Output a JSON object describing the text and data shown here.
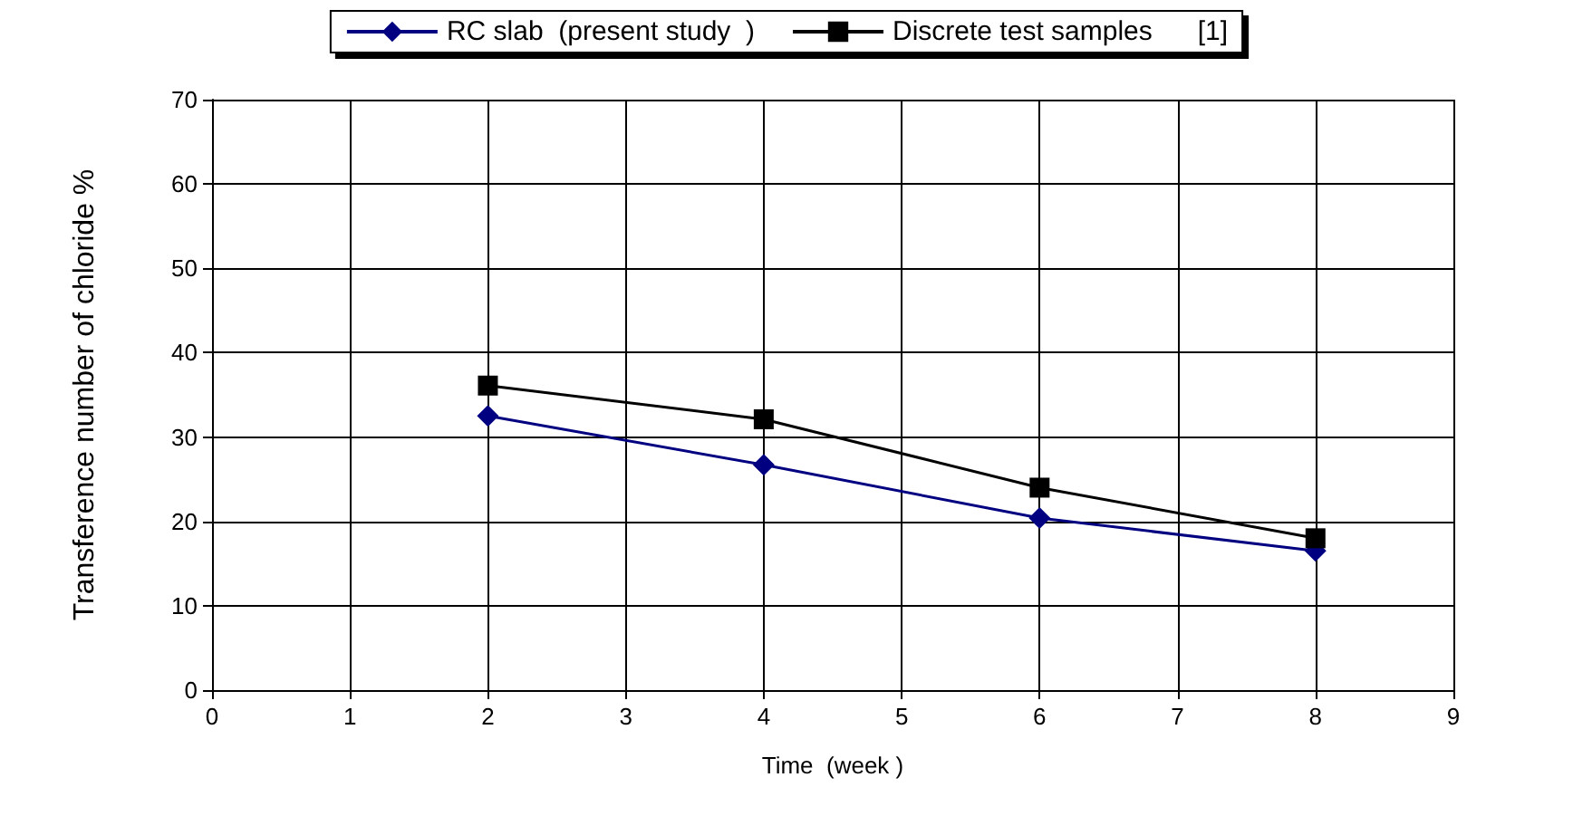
{
  "chart_data": {
    "type": "line",
    "xlabel": "Time  (week )",
    "ylabel": "Transference number of chloride %",
    "x": [
      2,
      4,
      6,
      8
    ],
    "series": [
      {
        "name": "RC slab  (present study  )",
        "color": "#000080",
        "values": [
          32.5,
          26.7,
          20.4,
          16.5
        ],
        "marker": "diamond"
      },
      {
        "name": "Discrete test samples      [1]",
        "color": "#000000",
        "values": [
          36.1,
          32.1,
          24.0,
          18.0
        ],
        "marker": "square"
      }
    ],
    "xlim": [
      0,
      9
    ],
    "xticks": [
      0,
      1,
      2,
      3,
      4,
      5,
      6,
      7,
      8,
      9
    ],
    "ylim": [
      0,
      70
    ],
    "yticks": [
      0,
      10,
      20,
      30,
      40,
      50,
      60,
      70
    ],
    "grid": true,
    "legend": "top",
    "line_style": "solid"
  }
}
